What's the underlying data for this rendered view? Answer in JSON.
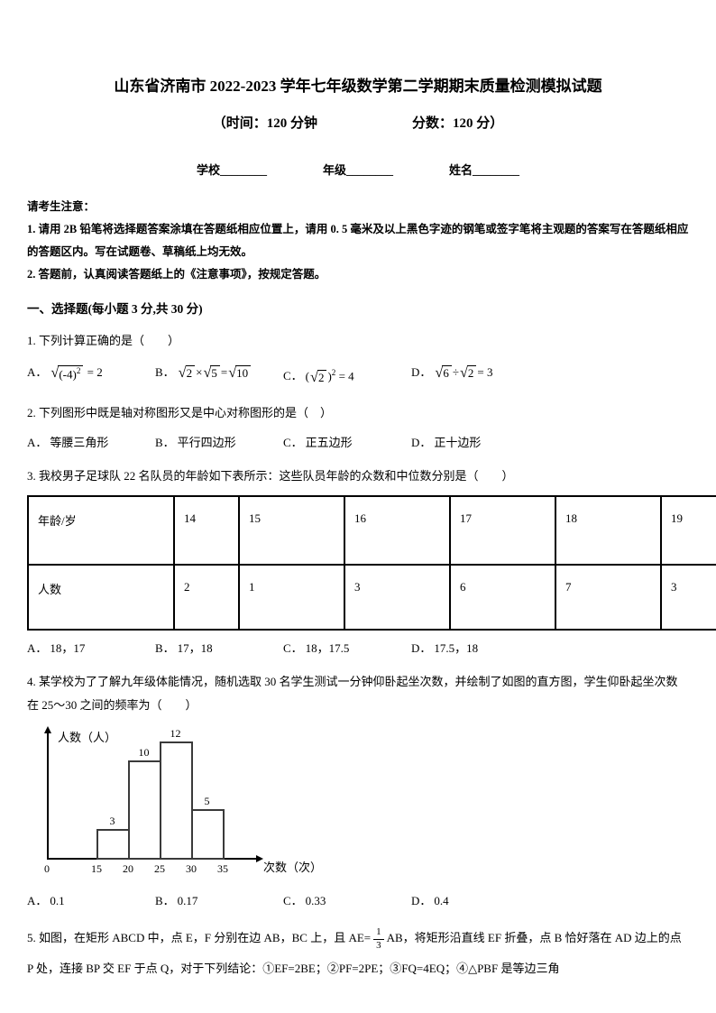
{
  "page": {
    "title": "山东省济南市 2022-2023 学年七年级数学第二学期期末质量检测模拟试题",
    "time_text": "（时间：120 分钟",
    "score_text": "分数：120 分）",
    "fields": [
      {
        "label": "学校",
        "blank": "________"
      },
      {
        "label": "年级",
        "blank": "________"
      },
      {
        "label": "姓名",
        "blank": "________"
      }
    ]
  },
  "notice": {
    "heading": "请考生注意：",
    "items": [
      "1. 请用 2B 铅笔将选择题答案涂填在答题纸相应位置上，请用 0. 5 毫米及以上黑色字迹的钢笔或签字笔将主观题的答案写在答题纸相应的答题区内。写在试题卷、草稿纸上均无效。",
      "2. 答题前，认真阅读答题纸上的《注意事项》，按规定答题。"
    ]
  },
  "section": {
    "heading": "一、选择题(每小题 3 分,共 30 分)"
  },
  "questions": {
    "q1": {
      "stem": "1. 下列计算正确的是（　　）",
      "options": [
        {
          "label": "A．",
          "tokens": [
            {
              "sqrt": [
                {
                  "text": "(-4)"
                },
                {
                  "sup": "2"
                }
              ]
            },
            {
              "text": " = 2"
            }
          ]
        },
        {
          "label": "B．",
          "tokens": [
            {
              "sqrt": [
                {
                  "text": "2"
                }
              ]
            },
            {
              "text": "×"
            },
            {
              "sqrt": [
                {
                  "text": "5"
                }
              ]
            },
            {
              "text": "="
            },
            {
              "sqrt": [
                {
                  "text": "10"
                }
              ]
            }
          ]
        },
        {
          "label": "C．",
          "tokens": [
            {
              "text": "("
            },
            {
              "sqrt": [
                {
                  "text": "2"
                }
              ]
            },
            {
              "text": ")"
            },
            {
              "sup": "2"
            },
            {
              "text": " = 4"
            }
          ]
        },
        {
          "label": "D．",
          "tokens": [
            {
              "sqrt": [
                {
                  "text": "6"
                }
              ]
            },
            {
              "text": "÷"
            },
            {
              "sqrt": [
                {
                  "text": "2"
                }
              ]
            },
            {
              "text": "= 3"
            }
          ]
        }
      ]
    },
    "q2": {
      "stem": "2. 下列图形中既是轴对称图形又是中心对称图形的是（　）",
      "options": [
        {
          "label": "A．",
          "text": "等腰三角形"
        },
        {
          "label": "B．",
          "text": "平行四边形"
        },
        {
          "label": "C．",
          "text": "正五边形"
        },
        {
          "label": "D．",
          "text": "正十边形"
        }
      ]
    },
    "q3": {
      "stem": "3. 我校男子足球队 22 名队员的年龄如下表所示：这些队员年龄的众数和中位数分别是（　　）",
      "table": {
        "rows": [
          [
            "年龄/岁",
            "14",
            "15",
            "16",
            "17",
            "18",
            "19"
          ],
          [
            "人数",
            "2",
            "1",
            "3",
            "6",
            "7",
            "3"
          ]
        ]
      },
      "options": [
        {
          "label": "A．",
          "text": "18，17"
        },
        {
          "label": "B．",
          "text": "17，18"
        },
        {
          "label": "C．",
          "text": "18，17.5"
        },
        {
          "label": "D．",
          "text": "17.5，18"
        }
      ]
    },
    "q4": {
      "stem": "4. 某学校为了了解九年级体能情况，随机选取 30 名学生测试一分钟仰卧起坐次数，并绘制了如图的直方图，学生仰卧起坐次数在 25～30 之间的频率为（　　）",
      "options": [
        {
          "label": "A．",
          "text": "0.1"
        },
        {
          "label": "B．",
          "text": "0.17"
        },
        {
          "label": "C．",
          "text": "0.33"
        },
        {
          "label": "D．",
          "text": "0.4"
        }
      ]
    },
    "q5": {
      "tokens": [
        {
          "text": "5. 如图，在矩形 ABCD 中，点 E，F 分别在边 AB，BC 上，且 AE="
        },
        {
          "frac": {
            "num": "1",
            "den": "3"
          }
        },
        {
          "text": "AB，将矩形沿直线 EF 折叠，点 B 恰好落在 AD 边上的点 P 处，连接 BP 交 EF 于点 Q，对于下列结论：①EF=2BE；②PF=2PE；③FQ=4EQ；④△PBF 是等边三角"
        }
      ]
    }
  },
  "chart_data": {
    "type": "bar",
    "title": "",
    "xlabel": "次数（次）",
    "ylabel": "人数（人）",
    "categories": [
      "15~20",
      "20~25",
      "25~30",
      "30~35"
    ],
    "values": [
      3,
      10,
      12,
      5
    ],
    "bar_labels": [
      "3",
      "10",
      "12",
      "5"
    ],
    "bar_edges": [
      15,
      20,
      25,
      30,
      35
    ],
    "x_ticks": [
      0,
      15,
      20,
      25,
      30,
      35
    ],
    "ylim": [
      0,
      12
    ],
    "grid": false,
    "legend": false
  }
}
